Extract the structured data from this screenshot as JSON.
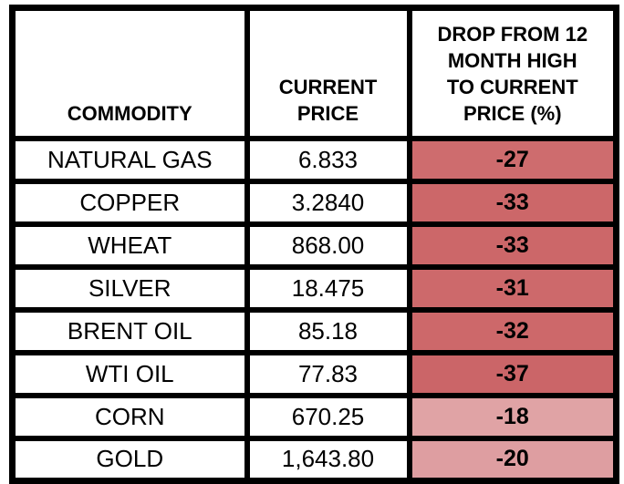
{
  "table": {
    "columns": [
      {
        "label": "COMMODITY"
      },
      {
        "label": "CURRENT\nPRICE"
      },
      {
        "label": "DROP FROM 12\nMONTH HIGH\nTO CURRENT\nPRICE (%)"
      }
    ],
    "rows": [
      {
        "commodity": "NATURAL GAS",
        "price": "6.833",
        "drop": "-27",
        "drop_bg": "#CE6C6E"
      },
      {
        "commodity": "COPPER",
        "price": "3.2840",
        "drop": "-33",
        "drop_bg": "#CC6769"
      },
      {
        "commodity": "WHEAT",
        "price": "868.00",
        "drop": "-33",
        "drop_bg": "#CC6769"
      },
      {
        "commodity": "SILVER",
        "price": "18.475",
        "drop": "-31",
        "drop_bg": "#CD696B"
      },
      {
        "commodity": "BRENT OIL",
        "price": "85.18",
        "drop": "-32",
        "drop_bg": "#CD686A"
      },
      {
        "commodity": "WTI OIL",
        "price": "77.83",
        "drop": "-37",
        "drop_bg": "#CB6568"
      },
      {
        "commodity": "CORN",
        "price": "670.25",
        "drop": "-18",
        "drop_bg": "#E0A3A5"
      },
      {
        "commodity": "GOLD",
        "price": "1,643.80",
        "drop": "-20",
        "drop_bg": "#DE9EA1"
      }
    ]
  },
  "colors": {
    "border": "#000000",
    "background": "#FFFFFF",
    "drop_strong": "#CD6A6C",
    "drop_light": "#DFA0A2"
  },
  "chart_data": {
    "type": "table",
    "columns": [
      "COMMODITY",
      "CURRENT PRICE",
      "DROP FROM 12 MONTH HIGH TO CURRENT PRICE (%)"
    ],
    "rows": [
      [
        "NATURAL GAS",
        "6.833",
        -27
      ],
      [
        "COPPER",
        "3.2840",
        -33
      ],
      [
        "WHEAT",
        "868.00",
        -33
      ],
      [
        "SILVER",
        "18.475",
        -31
      ],
      [
        "BRENT OIL",
        "85.18",
        -32
      ],
      [
        "WTI OIL",
        "77.83",
        -37
      ],
      [
        "CORN",
        "670.25",
        -18
      ],
      [
        "GOLD",
        "1,643.80",
        -20
      ]
    ],
    "notes": "Drop column uses red shading: stronger drops darker red, -18/-20 light pink"
  }
}
